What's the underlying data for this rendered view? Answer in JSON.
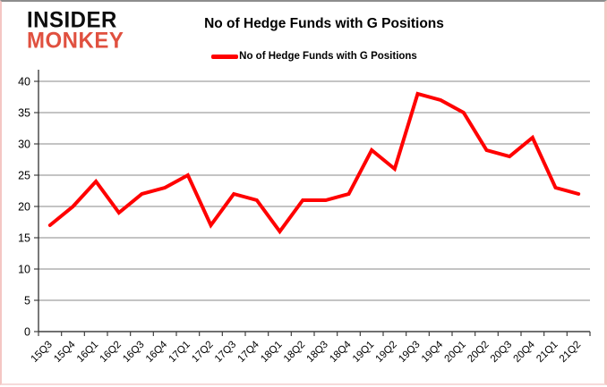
{
  "logo": {
    "line1": "INSIDER",
    "line2": "MONKEY"
  },
  "title": "No of Hedge Funds with G Positions",
  "legend": {
    "label": "No of Hedge Funds with G Positions"
  },
  "colors": {
    "line": "#FF0000",
    "logo_black": "#0d0d0d",
    "logo_red": "#e0503f",
    "grid": "#8a8a8a",
    "axis": "#404040",
    "text": "#000000"
  },
  "chart_data": {
    "type": "line",
    "title": "No of Hedge Funds with G Positions",
    "categories": [
      "15Q3",
      "15Q4",
      "16Q1",
      "16Q2",
      "16Q3",
      "16Q4",
      "17Q1",
      "17Q2",
      "17Q3",
      "17Q4",
      "18Q1",
      "18Q2",
      "18Q3",
      "18Q4",
      "19Q1",
      "19Q2",
      "19Q3",
      "19Q4",
      "20Q1",
      "20Q2",
      "20Q3",
      "20Q4",
      "21Q1",
      "21Q2"
    ],
    "series": [
      {
        "name": "No of Hedge Funds with G Positions",
        "values": [
          17,
          20,
          24,
          19,
          22,
          23,
          25,
          17,
          22,
          21,
          16,
          21,
          21,
          22,
          29,
          26,
          38,
          37,
          35,
          29,
          28,
          31,
          23,
          22
        ]
      }
    ],
    "xlabel": "",
    "ylabel": "",
    "ylim": [
      0,
      40
    ],
    "ytick_step": 5,
    "grid": "horizontal",
    "legend_position": "top-center",
    "line_width": 4,
    "markers": false
  }
}
